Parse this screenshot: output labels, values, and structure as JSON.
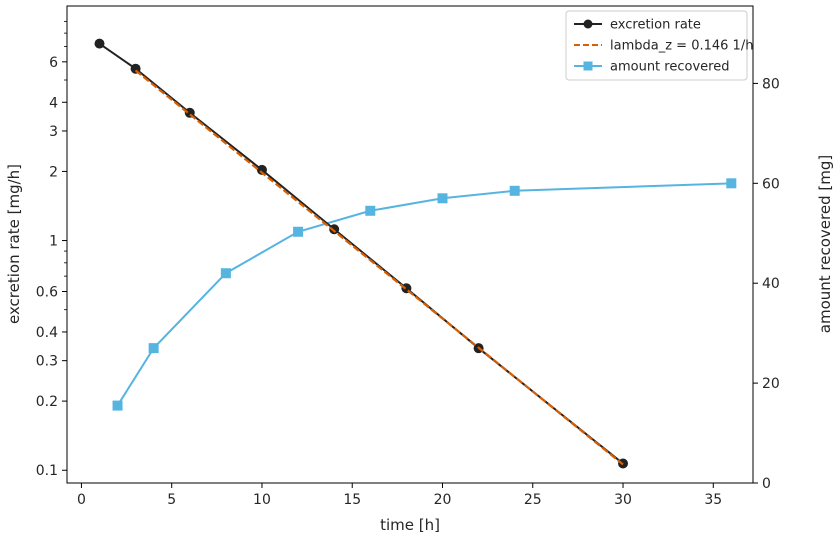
{
  "chart_data": {
    "type": "line",
    "xlabel": "time [h]",
    "ylabel_left": "excretion rate [mg/h]",
    "ylabel_right": "amount recovered [mg]",
    "xlim": [
      -0.8,
      37.2
    ],
    "ylim_left": [
      0.088,
      10.5
    ],
    "yscale_left": "log",
    "ylim_right": [
      0,
      95.5
    ],
    "x_ticks": [
      0,
      5,
      10,
      15,
      20,
      25,
      30,
      35
    ],
    "y_left_ticks": [
      0.1,
      0.2,
      0.3,
      0.4,
      0.6,
      1,
      2,
      3,
      4,
      6
    ],
    "y_left_minor": [
      0.5,
      0.7,
      0.8,
      0.9,
      5,
      7,
      8,
      9
    ],
    "y_right_ticks": [
      0,
      20,
      40,
      60,
      80
    ],
    "legend_position": "top-right",
    "grid": false,
    "series": [
      {
        "name": "excretion rate",
        "axis": "left",
        "marker": "circle",
        "color": "#222222",
        "x": [
          1,
          3,
          6,
          10,
          14,
          18,
          22,
          30
        ],
        "y": [
          7.2,
          5.6,
          3.6,
          2.03,
          1.12,
          0.62,
          0.34,
          0.107
        ]
      },
      {
        "name": "lambda_z = 0.146 1/h",
        "axis": "left",
        "style": "dashed",
        "color": "#d95f02",
        "x": [
          3,
          30
        ],
        "y": [
          5.5,
          0.106
        ]
      },
      {
        "name": "amount recovered",
        "axis": "right",
        "marker": "square",
        "color": "#56b4e0",
        "x": [
          2,
          4,
          8,
          12,
          16,
          20,
          24,
          36
        ],
        "y": [
          15.5,
          27,
          42,
          50.3,
          54.5,
          57,
          58.5,
          60
        ]
      }
    ]
  }
}
